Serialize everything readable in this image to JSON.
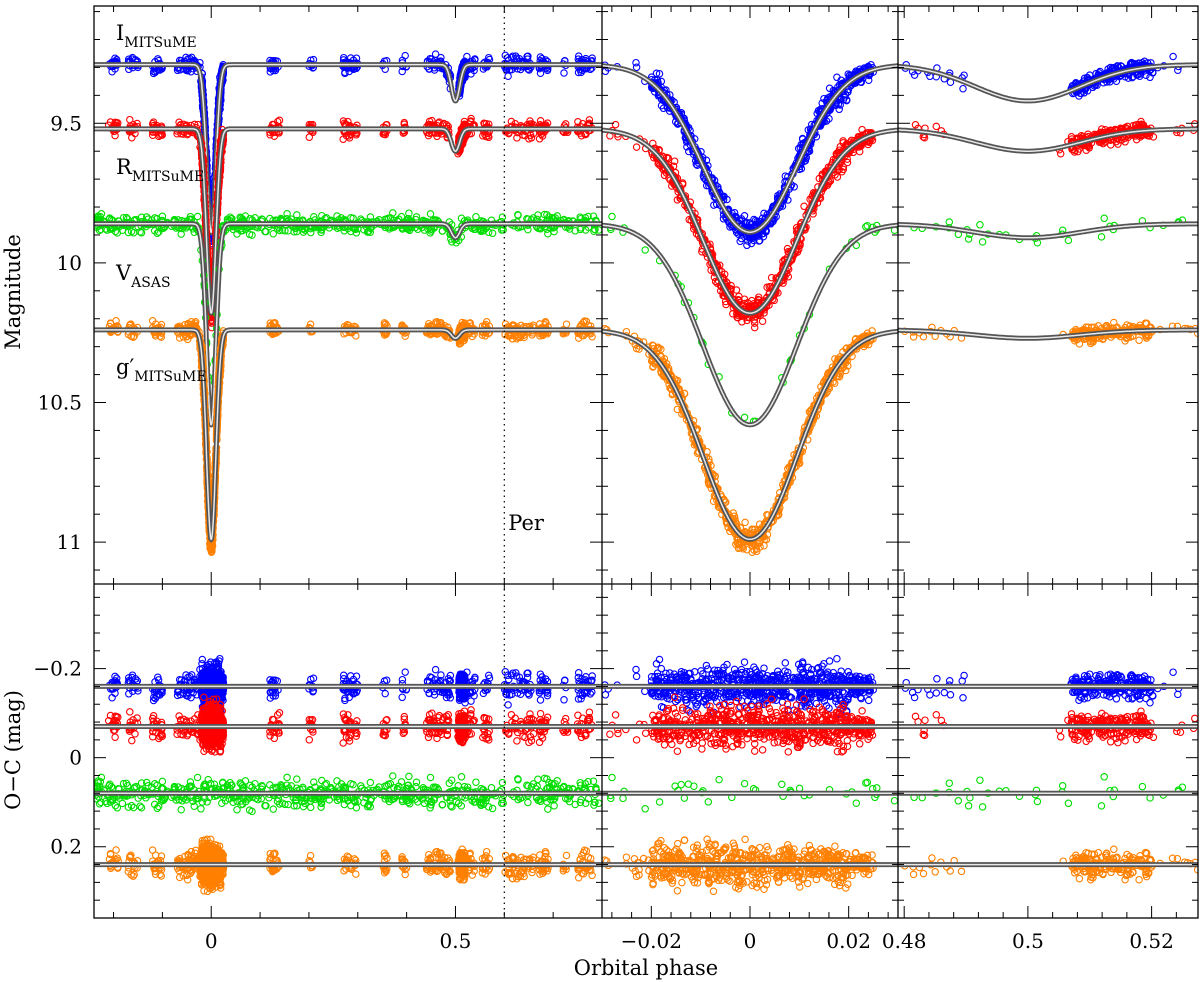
{
  "chart_data": {
    "type": "scatter",
    "xlabel": "Orbital phase",
    "panels": {
      "top": {
        "ylabel": "Magnitude",
        "ylim": [
          9.08,
          11.15
        ],
        "yticks": [
          "9.5",
          "10",
          "10.5",
          "11"
        ],
        "inverted_y": true
      },
      "bottom": {
        "ylabel": "O−C (mag)",
        "ylim": [
          -0.39,
          0.36
        ],
        "yticks": [
          "−0.2",
          "0",
          "0.2"
        ],
        "inverted_y": true
      }
    },
    "columns": [
      {
        "name": "full",
        "xlim": [
          -0.24,
          0.8
        ],
        "xticks": [
          "0",
          "0.5"
        ]
      },
      {
        "name": "primary-eclipse",
        "xlim": [
          -0.03,
          0.03
        ],
        "xticks": [
          "−0.02",
          "0",
          "0.02"
        ]
      },
      {
        "name": "secondary-eclipse",
        "xlim": [
          0.479,
          0.5275
        ],
        "xticks": [
          "0.48",
          "0.5",
          "0.52"
        ]
      }
    ],
    "annotations": {
      "vertical_line_label": "Per",
      "vertical_line_x": 0.6
    },
    "series": [
      {
        "band": "I",
        "subscript": "MITSuME",
        "color": "#0000ff",
        "baseline": 9.29,
        "primary_depth": 0.6,
        "secondary_depth": 0.13,
        "oc_offset": -0.16,
        "oc_scatter": 0.025
      },
      {
        "band": "R",
        "subscript": "MITSuME",
        "color": "#ff0000",
        "baseline": 9.52,
        "primary_depth": 0.66,
        "secondary_depth": 0.08,
        "oc_offset": -0.07,
        "oc_scatter": 0.025
      },
      {
        "band": "V",
        "subscript": "ASAS",
        "color": "#00dd00",
        "baseline": 9.86,
        "primary_depth": 0.72,
        "secondary_depth": 0.05,
        "oc_offset": 0.08,
        "oc_scatter": 0.02
      },
      {
        "band": "g′",
        "subscript": "MITSuME",
        "color": "#ff8000",
        "baseline": 10.24,
        "primary_depth": 0.75,
        "secondary_depth": 0.03,
        "oc_offset": 0.24,
        "oc_scatter": 0.025
      }
    ]
  }
}
